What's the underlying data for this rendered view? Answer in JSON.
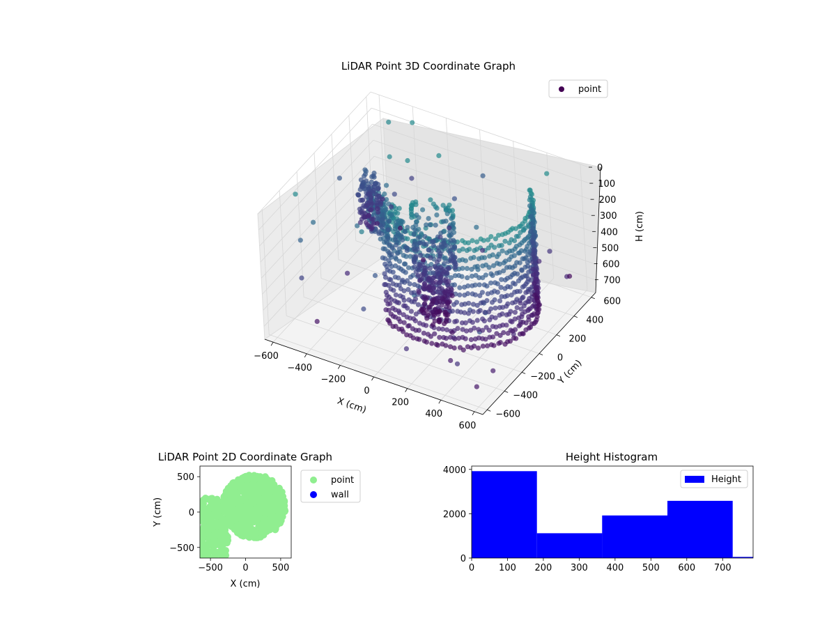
{
  "chart_data": [
    {
      "type": "scatter",
      "title": "LiDAR Point 3D Coordinate Graph",
      "xlabel": "X (cm)",
      "ylabel": "Y (cm)",
      "zlabel": "H (cm)",
      "xlim": [
        -650,
        650
      ],
      "ylim": [
        -650,
        650
      ],
      "zlim": [
        0,
        780
      ],
      "z_inverted": true,
      "xticks": [
        -600,
        -400,
        -200,
        0,
        200,
        400,
        600
      ],
      "yticks": [
        -600,
        -400,
        -200,
        0,
        200,
        400,
        600
      ],
      "zticks": [
        0,
        100,
        200,
        300,
        400,
        500,
        600,
        700
      ],
      "grid": true,
      "colormap": "viridis",
      "legend": {
        "entries": [
          "point"
        ],
        "placement": "top-right"
      },
      "series": [
        {
          "name": "point",
          "color": "#440154"
        }
      ]
    },
    {
      "type": "scatter",
      "title": "LiDAR Point 2D Coordinate Graph",
      "xlabel": "X (cm)",
      "ylabel": "Y (cm)",
      "xlim": [
        -650,
        650
      ],
      "ylim": [
        -650,
        650
      ],
      "xticks": [
        -500,
        0,
        500
      ],
      "yticks": [
        -500,
        0,
        500
      ],
      "legend": {
        "entries": [
          "point",
          "wall"
        ],
        "placement": "outside-right"
      },
      "series": [
        {
          "name": "point",
          "color": "#90ee90"
        },
        {
          "name": "wall",
          "color": "#0000ff"
        }
      ]
    },
    {
      "type": "bar",
      "title": "Height Histogram",
      "xlim": [
        0,
        785
      ],
      "ylim": [
        0,
        4150
      ],
      "xticks": [
        0,
        100,
        200,
        300,
        400,
        500,
        600,
        700
      ],
      "yticks": [
        0,
        2000,
        4000
      ],
      "bins": [
        {
          "start": 0,
          "end": 182,
          "count": 3920
        },
        {
          "start": 182,
          "end": 364,
          "count": 1120
        },
        {
          "start": 364,
          "end": 546,
          "count": 1920
        },
        {
          "start": 546,
          "end": 728,
          "count": 2580
        },
        {
          "start": 728,
          "end": 785,
          "count": 50
        }
      ],
      "color": "#0000ff",
      "legend": {
        "entries": [
          "Height"
        ],
        "placement": "top-right"
      },
      "series": [
        {
          "name": "Height",
          "color": "#0000ff"
        }
      ]
    }
  ]
}
